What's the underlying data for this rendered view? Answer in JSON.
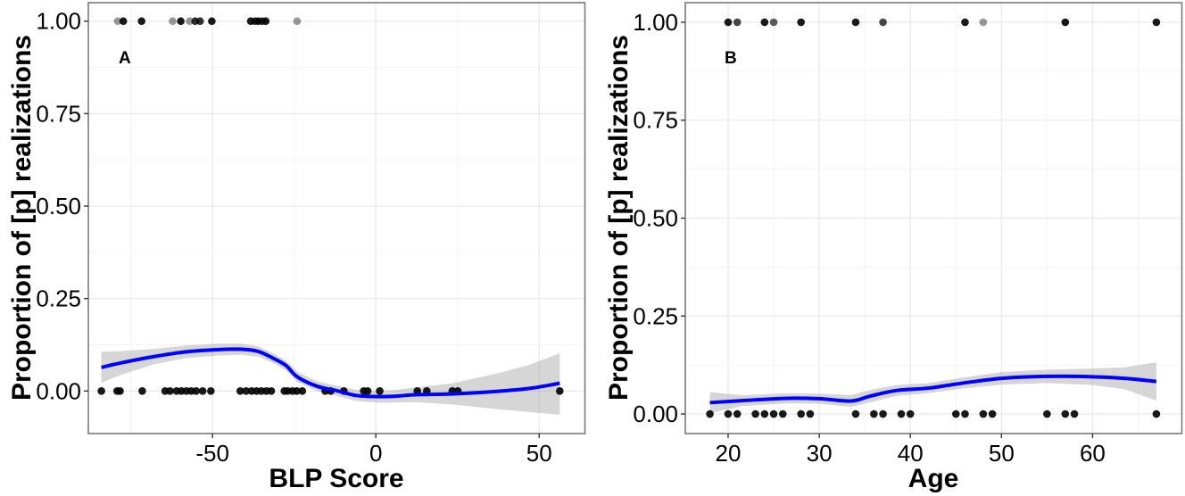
{
  "chart_data": [
    {
      "type": "scatter",
      "panel_label": "A",
      "xlabel": "BLP Score",
      "ylabel": "Proportion of [p] realizations",
      "xlim": [
        -88,
        64
      ],
      "ylim": [
        -0.115,
        1.05
      ],
      "xticks": [
        -50,
        0,
        50
      ],
      "xtick_labels": [
        "-50",
        "0",
        "50"
      ],
      "yticks": [
        0,
        0.25,
        0.5,
        0.75,
        1.0
      ],
      "ytick_labels": [
        "0.00",
        "0.25",
        "0.50",
        "0.75",
        "1.00"
      ],
      "grid": true,
      "points_y1": [
        -79,
        -77.3,
        -71.7,
        -62.2,
        -59.7,
        -57,
        -55.3,
        -53.8,
        -50.2,
        -38.3,
        -37,
        -36,
        -34.8,
        -33.7,
        -24.1
      ],
      "points_y1_alpha": [
        0.45,
        1,
        1,
        0.45,
        1,
        0.45,
        0.9,
        0.9,
        1,
        1,
        0.9,
        1,
        0.9,
        1,
        0.45
      ],
      "points_y0": [
        -84,
        -79.2,
        -78.3,
        -71.5,
        -64.5,
        -63,
        -61,
        -59.5,
        -58,
        -56.5,
        -55,
        -53,
        -50.5,
        -41.5,
        -39.7,
        -38,
        -36.5,
        -35,
        -33.5,
        -32,
        -28,
        -27,
        -25.5,
        -24.2,
        -22.5,
        -15.5,
        -13.8,
        -9.8,
        -3.7,
        -2.5,
        1.2,
        12.7,
        15.6,
        23.4,
        25.1,
        56.3
      ],
      "smooth": {
        "color": "#0000ff",
        "x": [
          -84,
          -78,
          -68,
          -58,
          -48,
          -41,
          -36,
          -31.5,
          -27.5,
          -24,
          -18,
          -12,
          -6,
          0,
          6,
          12,
          23,
          37,
          47,
          56.3
        ],
        "y": [
          0.064,
          0.076,
          0.093,
          0.106,
          0.112,
          0.113,
          0.107,
          0.089,
          0.069,
          0.038,
          0.013,
          0.001,
          -0.012,
          -0.015,
          -0.014,
          -0.01,
          -0.008,
          -0.001,
          0.007,
          0.021
        ],
        "lower": [
          0.022,
          0.044,
          0.072,
          0.089,
          0.096,
          0.098,
          0.093,
          0.076,
          0.056,
          0.024,
          0.0,
          -0.013,
          -0.027,
          -0.031,
          -0.031,
          -0.03,
          -0.036,
          -0.049,
          -0.057,
          -0.064
        ],
        "upper": [
          0.106,
          0.108,
          0.114,
          0.123,
          0.128,
          0.128,
          0.121,
          0.102,
          0.082,
          0.052,
          0.026,
          0.015,
          0.003,
          0.001,
          0.003,
          0.01,
          0.02,
          0.047,
          0.071,
          0.102
        ]
      }
    },
    {
      "type": "scatter",
      "panel_label": "B",
      "xlabel": "Age",
      "ylabel": "Proportion of [p] realizations",
      "xlim": [
        15.3,
        69.8
      ],
      "ylim": [
        -0.05,
        1.05
      ],
      "xticks": [
        20,
        30,
        40,
        50,
        60
      ],
      "xtick_labels": [
        "20",
        "30",
        "40",
        "50",
        "60"
      ],
      "yticks": [
        0,
        0.25,
        0.5,
        0.75,
        1.0
      ],
      "ytick_labels": [
        "0.00",
        "0.25",
        "0.50",
        "0.75",
        "1.00"
      ],
      "grid": true,
      "points_y1": [
        20,
        21,
        24,
        25,
        28,
        34,
        37,
        46,
        48,
        57,
        67
      ],
      "points_y1_alpha": [
        1,
        0.8,
        1,
        0.7,
        1,
        1,
        0.8,
        1,
        0.45,
        1,
        1
      ],
      "points_y0": [
        18,
        20,
        21,
        23,
        24,
        25,
        26,
        28,
        29,
        34,
        36,
        37,
        39,
        40,
        45,
        46,
        48,
        49,
        55,
        57,
        58,
        67
      ],
      "smooth": {
        "color": "#0000ff",
        "x": [
          18,
          21.5,
          26.5,
          30,
          33.5,
          35.5,
          38.5,
          42,
          45.5,
          50,
          55,
          60,
          63.5,
          67
        ],
        "y": [
          0.029,
          0.034,
          0.04,
          0.039,
          0.033,
          0.045,
          0.06,
          0.066,
          0.078,
          0.091,
          0.096,
          0.095,
          0.091,
          0.083
        ],
        "lower": [
          0.002,
          0.02,
          0.027,
          0.026,
          0.018,
          0.029,
          0.046,
          0.053,
          0.064,
          0.075,
          0.079,
          0.074,
          0.063,
          0.034
        ],
        "upper": [
          0.056,
          0.048,
          0.053,
          0.052,
          0.048,
          0.061,
          0.074,
          0.079,
          0.092,
          0.107,
          0.113,
          0.116,
          0.119,
          0.132
        ]
      }
    }
  ]
}
